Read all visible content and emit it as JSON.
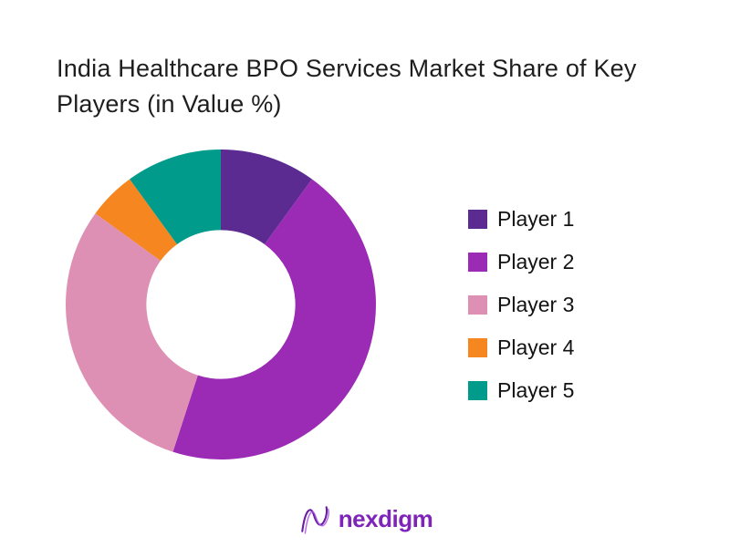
{
  "header": {
    "title_line1": "India Healthcare BPO Services Market Share of Key",
    "title_line2": "Players (in Value %)"
  },
  "chart_data": {
    "type": "pie",
    "subtype": "donut",
    "title": "India Healthcare BPO Services Market Share of Key Players (in Value %)",
    "values_are_percent": true,
    "values_estimated_from_angles": true,
    "donut_hole_ratio": 0.48,
    "start_angle_deg": 0,
    "direction": "clockwise",
    "legend_position": "right",
    "data_labels_shown": false,
    "series": [
      {
        "label": "Player 1",
        "value": 10,
        "color": "#5b2b91"
      },
      {
        "label": "Player 2",
        "value": 45,
        "color": "#9b2bb4"
      },
      {
        "label": "Player 3",
        "value": 30,
        "color": "#de8fb4"
      },
      {
        "label": "Player 4",
        "value": 5,
        "color": "#f6861f"
      },
      {
        "label": "Player 5",
        "value": 10,
        "color": "#019b8c"
      }
    ]
  },
  "footer": {
    "brand": "nexdigm",
    "brand_color": "#7e24b8",
    "logo_stroke_dark": "#6a1ea0",
    "logo_stroke_light": "#a855e8"
  }
}
